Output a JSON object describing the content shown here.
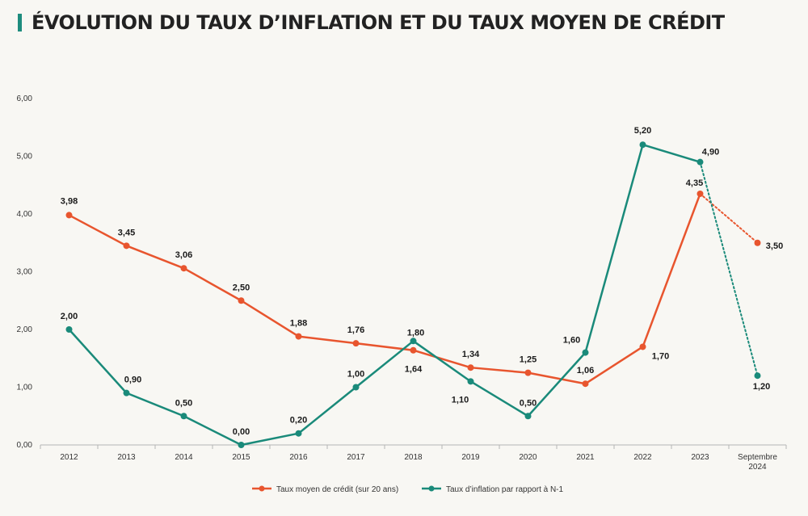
{
  "title": "ÉVOLUTION DU TAUX D’INFLATION ET DU TAUX MOYEN DE CRÉDIT",
  "colors": {
    "credit": "#e8552e",
    "inflation": "#1a8a7a",
    "accent": "#1e8c7e"
  },
  "chart_data": {
    "type": "line",
    "categories": [
      "2012",
      "2013",
      "2014",
      "2015",
      "2016",
      "2017",
      "2018",
      "2019",
      "2020",
      "2021",
      "2022",
      "2023",
      "Septembre 2024"
    ],
    "ylim": [
      0,
      6
    ],
    "yticks": [
      "0,00",
      "1,00",
      "2,00",
      "3,00",
      "4,00",
      "5,00",
      "6,00"
    ],
    "grid": false,
    "legend_position": "bottom-center",
    "series": [
      {
        "name": "Taux moyen de crédit (sur 20 ans)",
        "values": [
          3.98,
          3.45,
          3.06,
          2.5,
          1.88,
          1.76,
          1.64,
          1.34,
          1.25,
          1.06,
          1.7,
          4.35,
          3.5
        ],
        "labels": [
          "3,98",
          "3,45",
          "3,06",
          "2,50",
          "1,88",
          "1,76",
          "1,64",
          "1,34",
          "1,25",
          "1,06",
          "1,70",
          "4,35",
          "3,50"
        ],
        "dotted_last_segment": true
      },
      {
        "name": "Taux d’inflation par rapport à N-1",
        "values": [
          2.0,
          0.9,
          0.5,
          0.0,
          0.2,
          1.0,
          1.8,
          1.1,
          0.5,
          1.6,
          5.2,
          4.9,
          1.2
        ],
        "labels": [
          "2,00",
          "0,90",
          "0,50",
          "0,00",
          "0,20",
          "1,00",
          "1,80",
          "1,10",
          "0,50",
          "1,60",
          "5,20",
          "4,90",
          "1,20"
        ],
        "dotted_last_segment": true
      }
    ]
  }
}
